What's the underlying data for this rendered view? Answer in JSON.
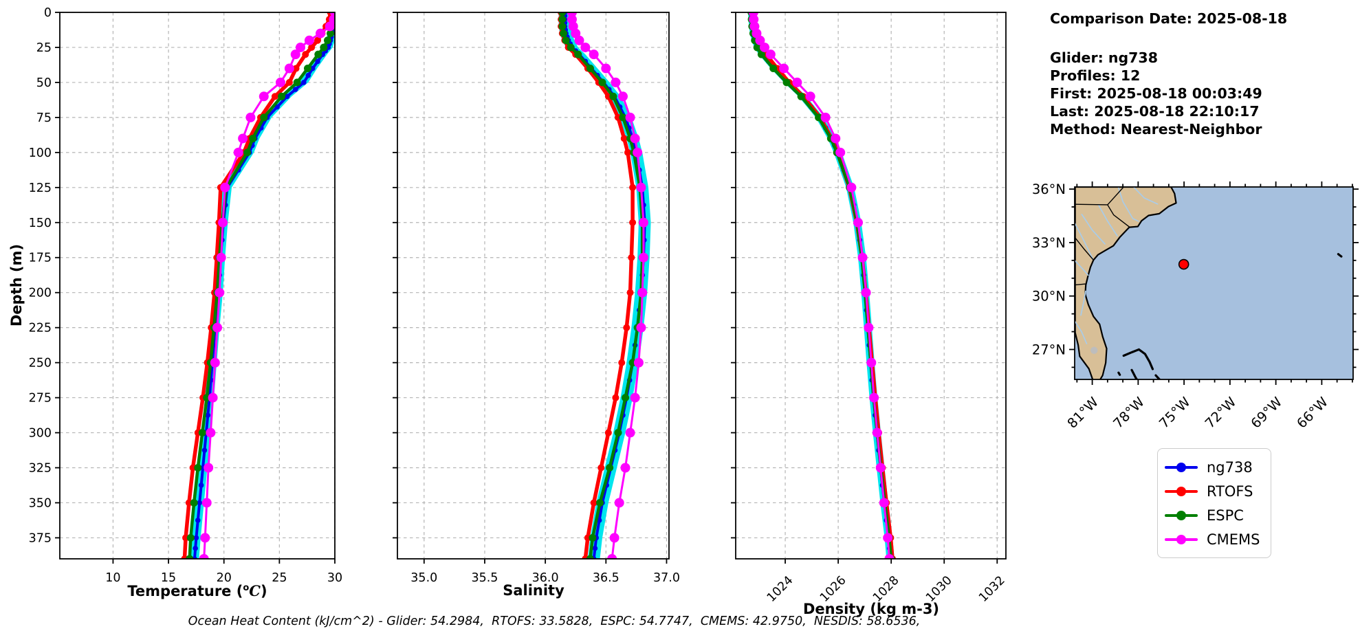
{
  "info_panel": {
    "comparison_date": "Comparison Date: 2025-08-18",
    "glider": "Glider: ng738",
    "profiles": "Profiles: 12",
    "first": "First: 2025-08-18 00:03:49",
    "last": "Last: 2025-08-18 22:10:17",
    "method": "Method: Nearest-Neighbor"
  },
  "footer": {
    "ocean_heat_content": "Ocean Heat Content (kJ/cm^2) - Glider: 54.2984,  RTOFS: 33.5828,  ESPC: 54.7747,  CMEMS: 42.9750,  NESDIS: 58.6536,"
  },
  "legend": {
    "items": [
      {
        "label": "ng738",
        "color": "#0000ee"
      },
      {
        "label": "RTOFS",
        "color": "#ff0000"
      },
      {
        "label": "ESPC",
        "color": "#007f00"
      },
      {
        "label": "CMEMS",
        "color": "#ff00ff"
      }
    ]
  },
  "colors": {
    "band": "#00e5ee",
    "grid": "#b4b4b4"
  },
  "series_styles": {
    "ng738": {
      "lw": 4,
      "r": 3.8,
      "densify": 1
    },
    "RTOFS": {
      "lw": 5.5,
      "r": 5,
      "densify": 0
    },
    "ESPC": {
      "lw": 4.5,
      "r": 5.5,
      "densify": 0
    },
    "CMEMS": {
      "lw": 3,
      "r": 7,
      "densify": 0
    }
  },
  "chart_data": {
    "type": "line",
    "ylabel": "Depth (m)",
    "ylim": [
      0,
      390
    ],
    "grid": true,
    "legend_position": "lower-right-outside",
    "yticks": [
      {
        "value": 0,
        "label": "0"
      },
      {
        "value": 25,
        "label": "25"
      },
      {
        "value": 50,
        "label": "50"
      },
      {
        "value": 75,
        "label": "75"
      },
      {
        "value": 100,
        "label": "100"
      },
      {
        "value": 125,
        "label": "125"
      },
      {
        "value": 150,
        "label": "150"
      },
      {
        "value": 175,
        "label": "175"
      },
      {
        "value": 200,
        "label": "200"
      },
      {
        "value": 225,
        "label": "225"
      },
      {
        "value": 250,
        "label": "250"
      },
      {
        "value": 275,
        "label": "275"
      },
      {
        "value": 300,
        "label": "300"
      },
      {
        "value": 325,
        "label": "325"
      },
      {
        "value": 350,
        "label": "350"
      },
      {
        "value": 375,
        "label": "375"
      }
    ],
    "depths": [
      0,
      5,
      10,
      15,
      20,
      25,
      30,
      40,
      50,
      60,
      75,
      90,
      100,
      125,
      150,
      175,
      200,
      225,
      250,
      275,
      300,
      325,
      350,
      375,
      390
    ],
    "panels": [
      {
        "id": "temperature",
        "xlabel": "Temperature (oC)",
        "xlabel_parts": {
          "prefix": "Temperature (",
          "sup": "o",
          "italic": "C",
          "suffix": ")"
        },
        "xlim": [
          5.2,
          30
        ],
        "rotate_xticks": false,
        "show_y_labels": true,
        "band_halfwidth": 0.4,
        "xticks": [
          {
            "value": 10,
            "label": "10"
          },
          {
            "value": 15,
            "label": "15"
          },
          {
            "value": 20,
            "label": "20"
          },
          {
            "value": 25,
            "label": "25"
          },
          {
            "value": 30,
            "label": "30"
          }
        ],
        "series": [
          {
            "name": "ng738",
            "color": "#0000ee",
            "values": [
              29.9,
              29.9,
              29.85,
              29.75,
              29.6,
              29.4,
              28.9,
              28.0,
              27.2,
              25.7,
              23.9,
              22.8,
              22.3,
              20.3,
              19.95,
              19.7,
              19.5,
              19.2,
              18.95,
              18.7,
              18.4,
              18.1,
              17.8,
              17.5,
              17.35
            ]
          },
          {
            "name": "RTOFS",
            "color": "#ff0000",
            "values": [
              29.6,
              29.5,
              29.2,
              28.85,
              28.45,
              27.9,
              27.35,
              26.5,
              25.9,
              24.6,
              23.3,
              22.3,
              21.8,
              19.7,
              19.55,
              19.35,
              19.15,
              18.85,
              18.5,
              18.1,
              17.65,
              17.2,
              16.85,
              16.55,
              16.45
            ]
          },
          {
            "name": "ESPC",
            "color": "#007f00",
            "values": [
              29.9,
              29.85,
              29.75,
              29.6,
              29.35,
              29.0,
              28.5,
              27.55,
              26.6,
              25.2,
              23.6,
              22.6,
              22.1,
              20.2,
              19.85,
              19.6,
              19.4,
              19.1,
              18.8,
              18.45,
              18.05,
              17.65,
              17.3,
              17.0,
              16.9
            ]
          },
          {
            "name": "CMEMS",
            "color": "#ff00ff",
            "values": [
              30.0,
              29.9,
              29.55,
              28.7,
              27.7,
              26.9,
              26.45,
              25.9,
              25.1,
              23.6,
              22.4,
              21.7,
              21.3,
              20.1,
              19.9,
              19.75,
              19.6,
              19.4,
              19.2,
              19.0,
              18.8,
              18.6,
              18.45,
              18.3,
              18.2
            ]
          }
        ]
      },
      {
        "id": "salinity",
        "xlabel": "Salinity",
        "xlim": [
          34.78,
          37.02
        ],
        "rotate_xticks": false,
        "show_y_labels": false,
        "band_halfwidth": 0.05,
        "xticks": [
          {
            "value": 35.0,
            "label": "35.0"
          },
          {
            "value": 35.5,
            "label": "35.5"
          },
          {
            "value": 36.0,
            "label": "36.0"
          },
          {
            "value": 36.5,
            "label": "36.5"
          },
          {
            "value": 37.0,
            "label": "37.0"
          }
        ],
        "series": [
          {
            "name": "ng738",
            "color": "#0000ee",
            "values": [
              36.16,
              36.16,
              36.16,
              36.17,
              36.19,
              36.22,
              36.28,
              36.38,
              36.48,
              36.57,
              36.66,
              36.72,
              36.75,
              36.8,
              36.82,
              36.81,
              36.79,
              36.76,
              36.72,
              36.67,
              36.61,
              36.54,
              36.47,
              36.42,
              36.4
            ]
          },
          {
            "name": "RTOFS",
            "color": "#ff0000",
            "values": [
              36.13,
              36.13,
              36.13,
              36.14,
              36.16,
              36.19,
              36.25,
              36.35,
              36.44,
              36.52,
              36.6,
              36.65,
              36.68,
              36.72,
              36.72,
              36.71,
              36.7,
              36.67,
              36.63,
              36.58,
              36.52,
              36.46,
              36.4,
              36.35,
              36.33
            ]
          },
          {
            "name": "ESPC",
            "color": "#007f00",
            "values": [
              36.14,
              36.14,
              36.14,
              36.15,
              36.17,
              36.21,
              36.27,
              36.37,
              36.47,
              36.56,
              36.64,
              36.7,
              36.73,
              36.78,
              36.8,
              36.8,
              36.79,
              36.76,
              36.72,
              36.66,
              36.6,
              36.53,
              36.45,
              36.39,
              36.37
            ]
          },
          {
            "name": "CMEMS",
            "color": "#ff00ff",
            "values": [
              36.22,
              36.22,
              36.23,
              36.25,
              36.28,
              36.33,
              36.4,
              36.5,
              36.58,
              36.64,
              36.7,
              36.74,
              36.76,
              36.79,
              36.81,
              36.81,
              36.8,
              36.79,
              36.77,
              36.74,
              36.7,
              36.66,
              36.61,
              36.57,
              36.55
            ]
          }
        ]
      },
      {
        "id": "density",
        "xlabel": "Density (kg m-3)",
        "xlim": [
          1022.13,
          1032.33
        ],
        "rotate_xticks": true,
        "show_y_labels": false,
        "band_halfwidth": 0.15,
        "xticks": [
          {
            "value": 1024,
            "label": "1024"
          },
          {
            "value": 1026,
            "label": "1026"
          },
          {
            "value": 1028,
            "label": "1028"
          },
          {
            "value": 1030,
            "label": "1030"
          },
          {
            "value": 1032,
            "label": "1032"
          }
        ],
        "series": [
          {
            "name": "ng738",
            "color": "#0000ee",
            "values": [
              1022.75,
              1022.76,
              1022.78,
              1022.82,
              1022.88,
              1022.98,
              1023.15,
              1023.6,
              1024.1,
              1024.65,
              1025.3,
              1025.75,
              1025.98,
              1026.45,
              1026.72,
              1026.9,
              1027.02,
              1027.12,
              1027.22,
              1027.33,
              1027.46,
              1027.6,
              1027.74,
              1027.9,
              1027.97
            ]
          },
          {
            "name": "RTOFS",
            "color": "#ff0000",
            "values": [
              1022.85,
              1022.86,
              1022.89,
              1022.95,
              1023.02,
              1023.12,
              1023.28,
              1023.7,
              1024.15,
              1024.68,
              1025.32,
              1025.75,
              1025.97,
              1026.42,
              1026.7,
              1026.9,
              1027.04,
              1027.16,
              1027.28,
              1027.4,
              1027.53,
              1027.67,
              1027.82,
              1027.98,
              1028.05
            ]
          },
          {
            "name": "ESPC",
            "color": "#007f00",
            "values": [
              1022.72,
              1022.73,
              1022.75,
              1022.79,
              1022.85,
              1022.94,
              1023.1,
              1023.55,
              1024.05,
              1024.6,
              1025.26,
              1025.72,
              1025.95,
              1026.43,
              1026.71,
              1026.89,
              1027.01,
              1027.12,
              1027.23,
              1027.34,
              1027.47,
              1027.61,
              1027.76,
              1027.92,
              1028.0
            ]
          },
          {
            "name": "CMEMS",
            "color": "#ff00ff",
            "values": [
              1022.8,
              1022.81,
              1022.84,
              1022.92,
              1023.05,
              1023.22,
              1023.45,
              1023.95,
              1024.45,
              1024.95,
              1025.52,
              1025.9,
              1026.08,
              1026.5,
              1026.75,
              1026.92,
              1027.05,
              1027.15,
              1027.25,
              1027.35,
              1027.47,
              1027.6,
              1027.73,
              1027.87,
              1027.93
            ]
          }
        ]
      }
    ]
  },
  "map": {
    "extent": {
      "lon_west": 82.15,
      "lon_east": 63.95,
      "lat_north": 36.12,
      "lat_south": 25.32
    },
    "lat_ticks": [
      {
        "value": 36,
        "label": "36°N"
      },
      {
        "value": 33,
        "label": "33°N"
      },
      {
        "value": 30,
        "label": "30°N"
      },
      {
        "value": 27,
        "label": "27°N"
      }
    ],
    "lon_ticks": [
      {
        "value": 81,
        "label": "81°W"
      },
      {
        "value": 78,
        "label": "78°W"
      },
      {
        "value": 75,
        "label": "75°W"
      },
      {
        "value": 72,
        "label": "72°W"
      },
      {
        "value": 69,
        "label": "69°W"
      },
      {
        "value": 66,
        "label": "66°W"
      }
    ],
    "marker": {
      "lon_w": 75.02,
      "lat": 31.78,
      "color": "#ff0000"
    },
    "colors": {
      "land": "#d8bf97",
      "ocean": "#a6c0de",
      "coast": "#000000",
      "river": "#a9cce9",
      "lake": "#bdbdbd"
    },
    "shapes": {
      "land": [
        [
          75.85,
          36.12
        ],
        [
          75.62,
          35.75
        ],
        [
          75.52,
          35.22
        ],
        [
          76.02,
          35.02
        ],
        [
          76.62,
          34.62
        ],
        [
          77.32,
          34.52
        ],
        [
          77.78,
          34.22
        ],
        [
          78.02,
          33.9
        ],
        [
          78.58,
          33.86
        ],
        [
          79.18,
          33.32
        ],
        [
          79.62,
          32.82
        ],
        [
          80.22,
          32.52
        ],
        [
          80.62,
          32.32
        ],
        [
          80.92,
          32.02
        ],
        [
          81.12,
          31.62
        ],
        [
          81.28,
          31.12
        ],
        [
          81.42,
          30.62
        ],
        [
          81.46,
          30.1
        ],
        [
          81.26,
          29.52
        ],
        [
          80.92,
          28.85
        ],
        [
          80.52,
          28.42
        ],
        [
          80.32,
          27.72
        ],
        [
          80.06,
          27.05
        ],
        [
          80.12,
          26.25
        ],
        [
          80.32,
          25.55
        ],
        [
          80.52,
          25.26
        ],
        [
          80.95,
          25.26
        ],
        [
          81.22,
          25.92
        ],
        [
          81.82,
          26.62
        ],
        [
          81.92,
          27.25
        ],
        [
          82.12,
          27.95
        ],
        [
          82.12,
          36.12
        ]
      ],
      "borders": [
        [
          [
            82.15,
            35.15
          ],
          [
            80.0,
            35.12
          ]
        ],
        [
          [
            80.0,
            35.12
          ],
          [
            79.6,
            34.55
          ],
          [
            78.58,
            33.88
          ]
        ],
        [
          [
            80.0,
            35.12
          ],
          [
            78.95,
            36.12
          ]
        ],
        [
          [
            80.92,
            32.02
          ],
          [
            81.5,
            32.6
          ],
          [
            82.15,
            33.3
          ]
        ],
        [
          [
            82.15,
            30.62
          ],
          [
            81.44,
            30.68
          ]
        ]
      ],
      "rivers": [
        [
          [
            79.3,
            36.12
          ],
          [
            79.0,
            35.3
          ],
          [
            78.35,
            34.35
          ],
          [
            77.95,
            34.18
          ]
        ],
        [
          [
            80.6,
            35.13
          ],
          [
            80.0,
            34.2
          ],
          [
            79.35,
            33.35
          ]
        ],
        [
          [
            81.7,
            34.6
          ],
          [
            81.0,
            33.7
          ],
          [
            80.15,
            32.9
          ]
        ],
        [
          [
            82.15,
            34.1
          ],
          [
            81.6,
            33.2
          ],
          [
            80.95,
            32.05
          ]
        ],
        [
          [
            82.15,
            32.0
          ],
          [
            81.6,
            31.5
          ],
          [
            81.25,
            31.15
          ]
        ],
        [
          [
            81.75,
            28.9
          ],
          [
            81.55,
            29.7
          ],
          [
            81.43,
            30.3
          ]
        ],
        [
          [
            78.3,
            36.12
          ],
          [
            77.6,
            35.5
          ],
          [
            76.7,
            35.15
          ]
        ],
        [
          [
            82.15,
            28.6
          ],
          [
            81.7,
            28.0
          ],
          [
            81.35,
            27.3
          ]
        ]
      ],
      "islands": [
        [
          [
            78.95,
            26.65
          ],
          [
            78.4,
            26.85
          ],
          [
            77.95,
            27.0
          ],
          [
            77.55,
            26.75
          ],
          [
            77.25,
            26.3
          ],
          [
            77.05,
            25.9
          ]
        ],
        [
          [
            78.42,
            25.85
          ],
          [
            78.15,
            25.4
          ],
          [
            78.05,
            25.27
          ]
        ],
        [
          [
            76.85,
            25.55
          ],
          [
            76.55,
            25.27
          ]
        ],
        [
          [
            79.28,
            25.7
          ],
          [
            79.2,
            25.58
          ]
        ],
        [
          [
            80.45,
            25.28
          ],
          [
            80.85,
            25.26
          ]
        ],
        [
          [
            64.92,
            32.35
          ],
          [
            64.72,
            32.22
          ]
        ]
      ],
      "lake": {
        "lon_w": 80.88,
        "lat": 26.95,
        "rx_deg": 0.22,
        "ry_deg": 0.2
      }
    }
  }
}
